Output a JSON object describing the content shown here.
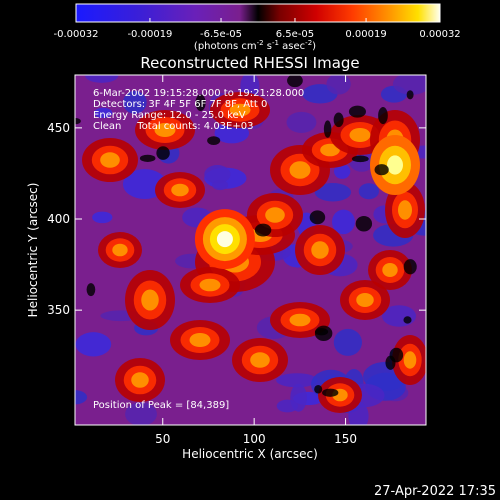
{
  "colorbar": {
    "ticks": [
      "-0.00032",
      "-0.00019",
      "-6.5e-05",
      "6.5e-05",
      "0.00019",
      "0.00032"
    ],
    "unit_main": "(photons cm",
    "unit_exp1": "-2",
    "unit_mid": " s",
    "unit_exp2": "-1",
    "unit_end": " asec",
    "unit_exp3": "-2",
    "unit_close": ")"
  },
  "chart_data": {
    "type": "heatmap",
    "title": "Reconstructed RHESSI Image",
    "xlabel": "Heliocentric X (arcsec)",
    "ylabel": "Heliocentric Y (arcsec)",
    "xlim": [
      2,
      194
    ],
    "ylim": [
      287,
      479
    ],
    "xticks": [
      50,
      100,
      150
    ],
    "yticks": [
      350,
      400,
      450
    ],
    "clim": [
      -0.00032,
      0.00032
    ],
    "peak": [
      84,
      389
    ],
    "annotations": [
      "6-Mar-2002 19:15:28.000 to 19:21:28.000",
      "Detectors: 3F 4F 5F 6F 7F 8F, Att 0",
      "Energy Range: 12.0 - 25.0 keV",
      "Clean     Total counts: 4.03E+03"
    ],
    "peak_label": "Position of Peak = [84,389]"
  },
  "footer": {
    "date": "27-Apr-2022 17:35"
  }
}
